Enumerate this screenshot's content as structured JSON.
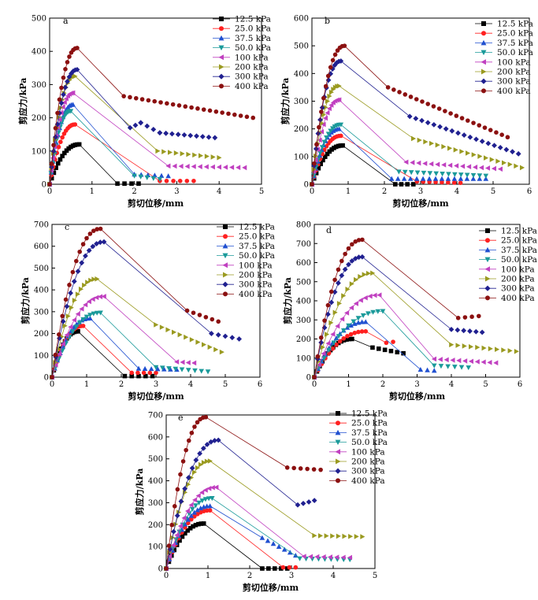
{
  "page_title": "",
  "legend_colors": {
    "12.5 kPa": "#000000",
    "25.0 kPa": "#ff2020",
    "37.5 kPa": "#2050d0",
    "50.0 kPa": "#1a9a9a",
    "100 kPa": "#c040c0",
    "200 kPa": "#9a9a20",
    "300 kPa": "#202090",
    "400 kPa": "#8b1010"
  },
  "chart_data": [
    {
      "panel": "a",
      "type": "scatter",
      "xlabel": "剪切位移/mm",
      "ylabel": "剪应力/kPa",
      "xlim": [
        0,
        5
      ],
      "ylim": [
        0,
        500
      ],
      "xticks": [
        "0",
        "1",
        "2",
        "3",
        "4",
        "5"
      ],
      "yticks": [
        "0",
        "100",
        "200",
        "300",
        "400",
        "500"
      ],
      "legend_position": "top-right",
      "series": [
        {
          "name": "12.5 kPa",
          "marker": "square",
          "peak": [
            0.7,
            120
          ],
          "post": [
            [
              1.6,
              2
            ],
            [
              2.1,
              2
            ]
          ]
        },
        {
          "name": "25.0 kPa",
          "marker": "circle",
          "peak": [
            0.6,
            180
          ],
          "post": [
            [
              2.6,
              10
            ],
            [
              3.4,
              10
            ]
          ]
        },
        {
          "name": "37.5 kPa",
          "marker": "triangle-up",
          "peak": [
            0.55,
            240
          ],
          "post": [
            [
              2.0,
              30
            ],
            [
              2.8,
              25
            ]
          ]
        },
        {
          "name": "50.0 kPa",
          "marker": "triangle-down",
          "peak": [
            0.5,
            220
          ],
          "post": [
            [
              2.0,
              25
            ],
            [
              2.6,
              15
            ]
          ]
        },
        {
          "name": "100 kPa",
          "marker": "triangle-left",
          "peak": [
            0.55,
            275
          ],
          "post": [
            [
              2.8,
              55
            ],
            [
              4.6,
              50
            ]
          ]
        },
        {
          "name": "200 kPa",
          "marker": "triangle-right",
          "peak": [
            0.6,
            325
          ],
          "post": [
            [
              2.55,
              100
            ],
            [
              4.0,
              80
            ]
          ]
        },
        {
          "name": "300 kPa",
          "marker": "diamond",
          "peak": [
            0.65,
            345
          ],
          "post": [
            [
              1.9,
              170
            ],
            [
              2.15,
              185
            ],
            [
              2.6,
              155
            ],
            [
              3.9,
              140
            ]
          ]
        },
        {
          "name": "400 kPa",
          "marker": "circle",
          "peak": [
            0.65,
            410
          ],
          "post": [
            [
              1.75,
              265
            ],
            [
              4.8,
              200
            ]
          ]
        }
      ]
    },
    {
      "panel": "b",
      "type": "scatter",
      "xlabel": "剪切位移/mm",
      "ylabel": "剪应力/kPa",
      "xlim": [
        0,
        6
      ],
      "ylim": [
        0,
        600
      ],
      "xticks": [
        "0",
        "1",
        "2",
        "3",
        "4",
        "5",
        "6"
      ],
      "yticks": [
        "0",
        "100",
        "200",
        "300",
        "400",
        "500",
        "600"
      ],
      "legend_position": "top-right",
      "series": [
        {
          "name": "12.5 kPa",
          "marker": "square",
          "peak": [
            0.85,
            140
          ],
          "post": [
            [
              2.3,
              0
            ],
            [
              2.8,
              0
            ]
          ]
        },
        {
          "name": "25.0 kPa",
          "marker": "circle",
          "peak": [
            0.8,
            175
          ],
          "post": [
            [
              2.9,
              10
            ],
            [
              4.1,
              5
            ]
          ]
        },
        {
          "name": "37.5 kPa",
          "marker": "triangle-up",
          "peak": [
            0.75,
            200
          ],
          "post": [
            [
              2.2,
              20
            ],
            [
              4.8,
              20
            ]
          ]
        },
        {
          "name": "50.0 kPa",
          "marker": "triangle-down",
          "peak": [
            0.8,
            215
          ],
          "post": [
            [
              2.4,
              45
            ],
            [
              4.8,
              30
            ]
          ]
        },
        {
          "name": "100 kPa",
          "marker": "triangle-left",
          "peak": [
            0.75,
            305
          ],
          "post": [
            [
              2.6,
              80
            ],
            [
              5.2,
              55
            ]
          ]
        },
        {
          "name": "200 kPa",
          "marker": "triangle-right",
          "peak": [
            0.75,
            355
          ],
          "post": [
            [
              2.8,
              165
            ],
            [
              5.8,
              60
            ]
          ]
        },
        {
          "name": "300 kPa",
          "marker": "diamond",
          "peak": [
            0.8,
            445
          ],
          "post": [
            [
              2.7,
              245
            ],
            [
              5.7,
              110
            ]
          ]
        },
        {
          "name": "400 kPa",
          "marker": "circle",
          "peak": [
            0.9,
            500
          ],
          "post": [
            [
              2.1,
              350
            ],
            [
              5.4,
              170
            ]
          ]
        }
      ]
    },
    {
      "panel": "c",
      "type": "scatter",
      "xlabel": "剪切位移/mm",
      "ylabel": "剪应力/kPa",
      "xlim": [
        0,
        6
      ],
      "ylim": [
        0,
        700
      ],
      "xticks": [
        "0",
        "1",
        "2",
        "3",
        "4",
        "5",
        "6"
      ],
      "yticks": [
        "0",
        "100",
        "200",
        "300",
        "400",
        "500",
        "600",
        "700"
      ],
      "legend_position": "top-right",
      "series": [
        {
          "name": "12.5 kPa",
          "marker": "square",
          "peak": [
            0.75,
            210
          ],
          "post": [
            [
              2.1,
              5
            ],
            [
              2.9,
              5
            ]
          ]
        },
        {
          "name": "25.0 kPa",
          "marker": "circle",
          "peak": [
            0.9,
            235
          ],
          "post": [
            [
              2.3,
              20
            ],
            [
              3.0,
              20
            ]
          ]
        },
        {
          "name": "37.5 kPa",
          "marker": "triangle-up",
          "peak": [
            1.1,
            270
          ],
          "post": [
            [
              2.5,
              40
            ],
            [
              3.6,
              35
            ]
          ]
        },
        {
          "name": "50.0 kPa",
          "marker": "triangle-down",
          "peak": [
            1.4,
            295
          ],
          "post": [
            [
              3.0,
              45
            ],
            [
              4.5,
              25
            ]
          ]
        },
        {
          "name": "100 kPa",
          "marker": "triangle-left",
          "peak": [
            1.5,
            370
          ],
          "post": [
            [
              3.6,
              70
            ],
            [
              4.1,
              65
            ]
          ]
        },
        {
          "name": "200 kPa",
          "marker": "triangle-right",
          "peak": [
            1.3,
            450
          ],
          "post": [
            [
              3.0,
              240
            ],
            [
              4.9,
              115
            ]
          ]
        },
        {
          "name": "300 kPa",
          "marker": "diamond",
          "peak": [
            1.5,
            620
          ],
          "post": [
            [
              4.6,
              200
            ],
            [
              5.4,
              175
            ]
          ]
        },
        {
          "name": "400 kPa",
          "marker": "circle",
          "peak": [
            1.4,
            680
          ],
          "post": [
            [
              3.9,
              305
            ],
            [
              4.8,
              255
            ]
          ]
        }
      ]
    },
    {
      "panel": "d",
      "type": "scatter",
      "xlabel": "剪切位移/mm",
      "ylabel": "剪应力/kPa",
      "xlim": [
        0,
        6
      ],
      "ylim": [
        0,
        800
      ],
      "xticks": [
        "0",
        "1",
        "2",
        "3",
        "4",
        "5",
        "6"
      ],
      "yticks": [
        "0",
        "100",
        "200",
        "300",
        "400",
        "500",
        "600",
        "700",
        "800"
      ],
      "legend_position": "top-right",
      "series": [
        {
          "name": "12.5 kPa",
          "marker": "square",
          "peak": [
            1.1,
            200
          ],
          "post": [
            [
              1.7,
              155
            ],
            [
              2.6,
              125
            ]
          ]
        },
        {
          "name": "25.0 kPa",
          "marker": "circle",
          "peak": [
            1.5,
            240
          ],
          "post": [
            [
              2.1,
              180
            ],
            [
              2.3,
              185
            ]
          ]
        },
        {
          "name": "37.5 kPa",
          "marker": "triangle-up",
          "peak": [
            1.5,
            290
          ],
          "post": [
            [
              3.1,
              40
            ],
            [
              3.5,
              35
            ]
          ]
        },
        {
          "name": "50.0 kPa",
          "marker": "triangle-down",
          "peak": [
            2.0,
            345
          ],
          "post": [
            [
              3.5,
              60
            ],
            [
              4.5,
              50
            ]
          ]
        },
        {
          "name": "100 kPa",
          "marker": "triangle-left",
          "peak": [
            1.9,
            430
          ],
          "post": [
            [
              3.5,
              95
            ],
            [
              5.3,
              75
            ]
          ]
        },
        {
          "name": "200 kPa",
          "marker": "triangle-right",
          "peak": [
            1.7,
            545
          ],
          "post": [
            [
              4.0,
              170
            ],
            [
              5.9,
              135
            ]
          ]
        },
        {
          "name": "300 kPa",
          "marker": "diamond",
          "peak": [
            1.4,
            630
          ],
          "post": [
            [
              4.0,
              250
            ],
            [
              4.9,
              235
            ]
          ]
        },
        {
          "name": "400 kPa",
          "marker": "circle",
          "peak": [
            1.4,
            720
          ],
          "post": [
            [
              4.2,
              310
            ],
            [
              4.8,
              320
            ]
          ]
        }
      ]
    },
    {
      "panel": "e",
      "type": "scatter",
      "xlabel": "剪切位移/mm",
      "ylabel": "剪应力/kPa",
      "xlim": [
        0,
        5
      ],
      "ylim": [
        0,
        700
      ],
      "xticks": [
        "0",
        "1",
        "2",
        "3",
        "4",
        "5"
      ],
      "yticks": [
        "0",
        "100",
        "200",
        "300",
        "400",
        "500",
        "600",
        "700"
      ],
      "legend_position": "top-right",
      "series": [
        {
          "name": "12.5 kPa",
          "marker": "square",
          "peak": [
            0.9,
            205
          ],
          "post": [
            [
              2.3,
              0
            ],
            [
              2.9,
              0
            ]
          ]
        },
        {
          "name": "25.0 kPa",
          "marker": "circle",
          "peak": [
            1.05,
            265
          ],
          "post": [
            [
              2.8,
              5
            ],
            [
              3.1,
              5
            ]
          ]
        },
        {
          "name": "37.5 kPa",
          "marker": "triangle-up",
          "peak": [
            1.05,
            285
          ],
          "post": [
            [
              2.3,
              140
            ],
            [
              3.1,
              60
            ]
          ]
        },
        {
          "name": "50.0 kPa",
          "marker": "triangle-down",
          "peak": [
            1.1,
            320
          ],
          "post": [
            [
              3.2,
              45
            ],
            [
              4.4,
              40
            ]
          ]
        },
        {
          "name": "100 kPa",
          "marker": "triangle-left",
          "peak": [
            1.2,
            370
          ],
          "post": [
            [
              3.3,
              55
            ],
            [
              4.4,
              50
            ]
          ]
        },
        {
          "name": "200 kPa",
          "marker": "triangle-right",
          "peak": [
            1.05,
            490
          ],
          "post": [
            [
              3.55,
              150
            ],
            [
              4.7,
              145
            ]
          ]
        },
        {
          "name": "300 kPa",
          "marker": "diamond",
          "peak": [
            1.25,
            585
          ],
          "post": [
            [
              3.15,
              290
            ],
            [
              3.55,
              310
            ]
          ]
        },
        {
          "name": "400 kPa",
          "marker": "circle",
          "peak": [
            0.95,
            690
          ],
          "post": [
            [
              2.9,
              460
            ],
            [
              3.7,
              450
            ]
          ]
        }
      ]
    }
  ]
}
